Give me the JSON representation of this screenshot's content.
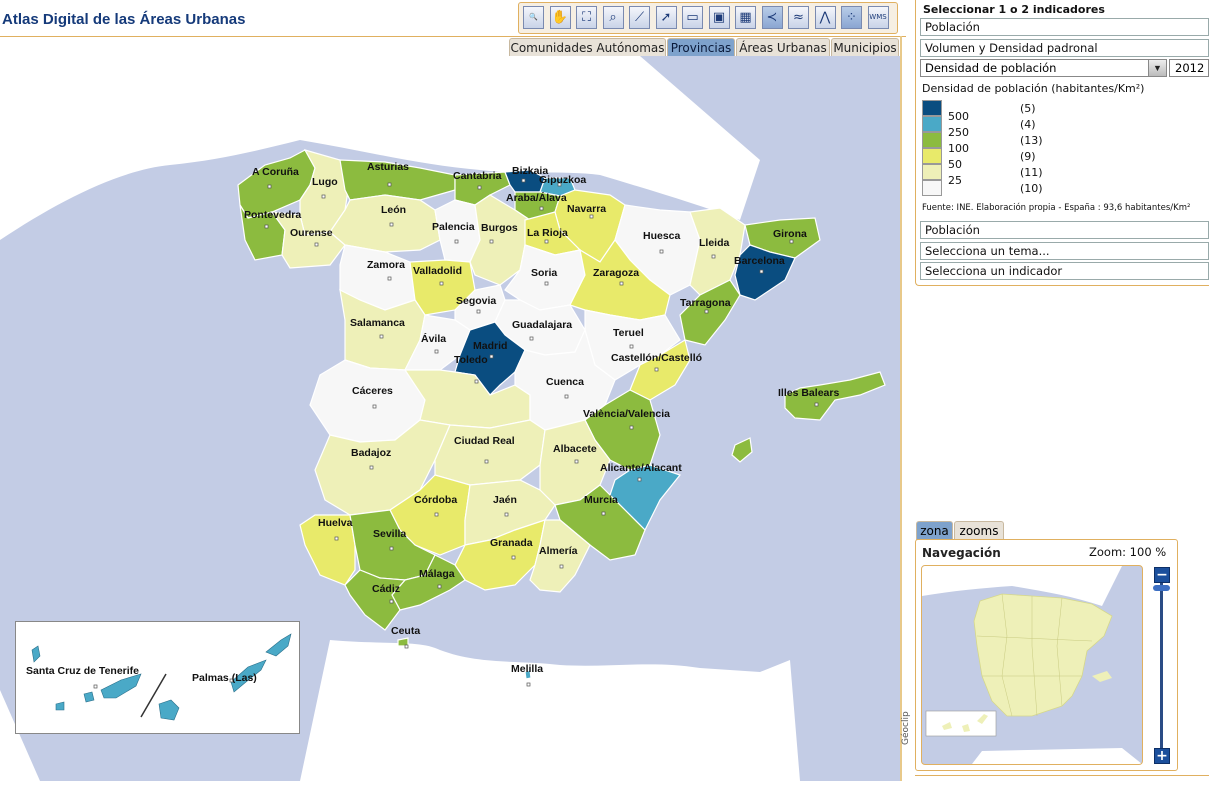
{
  "app": {
    "title": "Atlas Digital de las Áreas Urbanas"
  },
  "toolbar": {
    "tools": [
      {
        "icon": "zoom-icon",
        "glyph": "🔍"
      },
      {
        "icon": "pan-hand-icon",
        "glyph": "✋"
      },
      {
        "icon": "full-extent-icon",
        "glyph": "⛶"
      },
      {
        "icon": "binoculars-icon",
        "glyph": "⌕"
      },
      {
        "icon": "measure-distance-icon",
        "glyph": "⟋"
      },
      {
        "icon": "select-arrow-icon",
        "glyph": "➚"
      },
      {
        "icon": "open-folder-icon",
        "glyph": "▭"
      },
      {
        "icon": "save-icon",
        "glyph": "▣"
      },
      {
        "icon": "table-icon",
        "glyph": "▦"
      },
      {
        "icon": "roads-layer-icon",
        "glyph": "≺"
      },
      {
        "icon": "rivers-layer-icon",
        "glyph": "≈"
      },
      {
        "icon": "railways-layer-icon",
        "glyph": "⋀"
      },
      {
        "icon": "points-layer-icon",
        "glyph": "⁘"
      },
      {
        "icon": "wms-icon",
        "glyph": "WMS"
      }
    ]
  },
  "tabs": {
    "comunidades": "Comunidades Autónomas",
    "provincias": "Provincias",
    "areas": "Áreas Urbanas",
    "municipios": "Municipios",
    "active": "provincias"
  },
  "panel": {
    "title": "Seleccionar 1 o 2 indicadores",
    "theme": "Población",
    "subtheme": "Volumen y Densidad padronal",
    "indicator": "Densidad de población",
    "year": "2012",
    "theme2": "Población",
    "theme_placeholder": "Selecciona un tema...",
    "indicator_placeholder": "Selecciona un indicador",
    "source": "Fuente: INE. Elaboración propia - España : 93,6 habitantes/Km²"
  },
  "legend": {
    "title": "Densidad de población (habitantes/Km²)",
    "classes": [
      {
        "label": "500",
        "count": "(5)",
        "color": "#0a4d80"
      },
      {
        "label": "250",
        "count": "(4)",
        "color": "#4aa9c7"
      },
      {
        "label": "100",
        "count": "(13)",
        "color": "#8cbb3f"
      },
      {
        "label": "50",
        "count": "(9)",
        "color": "#e8ea6a"
      },
      {
        "label": "25",
        "count": "(11)",
        "color": "#eef0b8"
      },
      {
        "label": "",
        "count": "(10)",
        "color": "#f7f7f7"
      }
    ]
  },
  "navigation": {
    "tab_zona": "zona",
    "tab_zooms": "zooms",
    "title": "Navegación",
    "zoom": "Zoom: 100 %",
    "zoom_in": "+",
    "zoom_out": "−"
  },
  "geoclip": "Géoclip",
  "map_labels": {
    "a_coruna": "A Coruña",
    "lugo": "Lugo",
    "asturias": "Asturias",
    "cantabria": "Cantabria",
    "bizkaia": "Bizkaia",
    "gipuzkoa": "Gipuzkoa",
    "araba": "Araba/Álava",
    "navarra": "Navarra",
    "pontevedra": "Pontevedra",
    "ourense": "Ourense",
    "leon": "León",
    "palencia": "Palencia",
    "burgos": "Burgos",
    "la_rioja": "La Rioja",
    "huesca": "Huesca",
    "lleida": "Lleida",
    "girona": "Girona",
    "barcelona": "Barcelona",
    "zamora": "Zamora",
    "valladolid": "Valladolid",
    "soria": "Soria",
    "zaragoza": "Zaragoza",
    "tarragona": "Tarragona",
    "segovia": "Segovia",
    "salamanca": "Salamanca",
    "guadalajara": "Guadalajara",
    "teruel": "Teruel",
    "avila": "Ávila",
    "madrid": "Madrid",
    "castellon": "Castellón/Castelló",
    "caceres": "Cáceres",
    "toledo": "Toledo",
    "cuenca": "Cuenca",
    "illes_balears": "Illes Balears",
    "valencia": "València/Valencia",
    "badajoz": "Badajoz",
    "ciudad_real": "Ciudad Real",
    "albacete": "Albacete",
    "alicante": "Alicante/Alacant",
    "cordoba": "Córdoba",
    "jaen": "Jaén",
    "murcia": "Murcia",
    "huelva": "Huelva",
    "sevilla": "Sevilla",
    "granada": "Granada",
    "almeria": "Almería",
    "malaga": "Málaga",
    "cadiz": "Cádiz",
    "ceuta": "Ceuta",
    "melilla": "Melilla",
    "santa_cruz": "Santa Cruz de Tenerife",
    "las_palmas": "Palmas (Las)"
  }
}
